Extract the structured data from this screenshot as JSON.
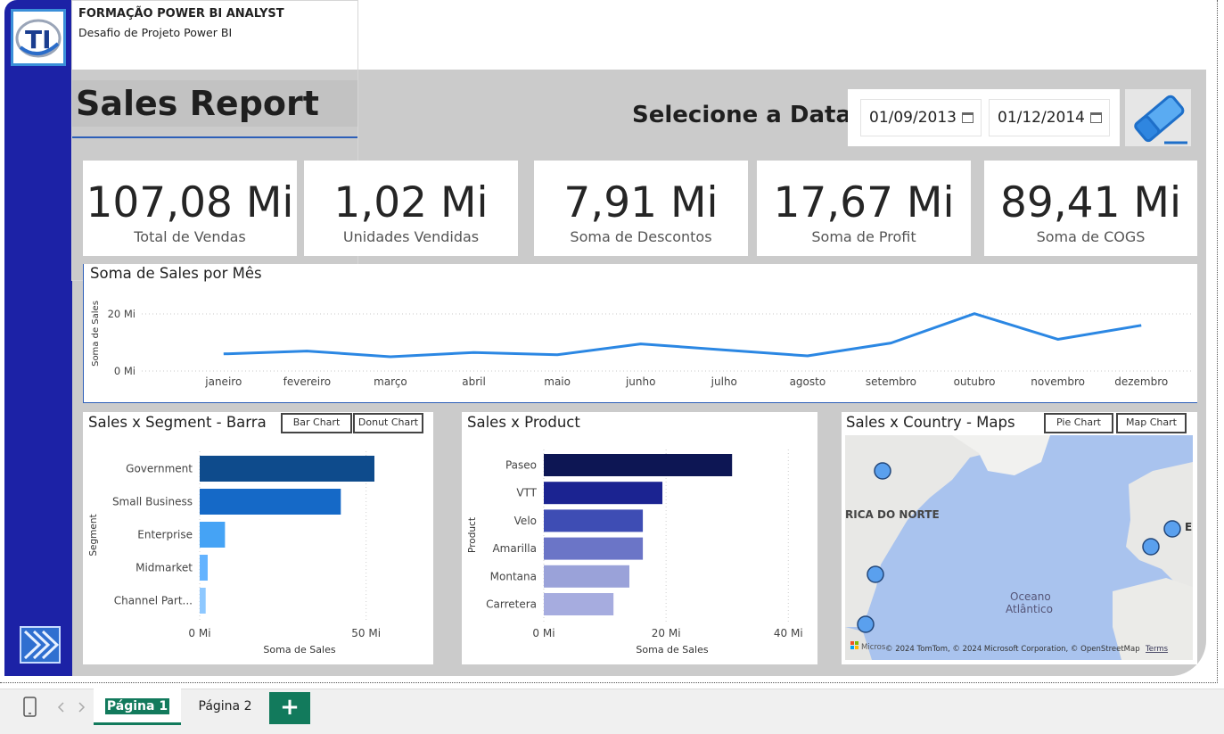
{
  "header": {
    "title": "FORMAÇÃO POWER BI ANALYST",
    "subtitle": "Desafio de Projeto Power BI",
    "logo_text": "TI"
  },
  "report": {
    "title": "Sales Report",
    "date_label": "Selecione a Data",
    "date_start": "01/09/2013",
    "date_end": "01/12/2014"
  },
  "kpis": [
    {
      "value": "107,08 Mi",
      "label": "Total de Vendas"
    },
    {
      "value": "1,02 Mi",
      "label": "Unidades Vendidas"
    },
    {
      "value": "7,91 Mi",
      "label": "Soma de Descontos"
    },
    {
      "value": "17,67 Mi",
      "label": "Soma de Profit"
    },
    {
      "value": "89,41 Mi",
      "label": "Soma de COGS"
    }
  ],
  "toggles": {
    "segment": [
      "Bar Chart",
      "Donut Chart"
    ],
    "country": [
      "Pie Chart",
      "Map Chart"
    ]
  },
  "map": {
    "label_continent": "RICA DO NORTE",
    "label_ocean_1": "Oceano",
    "label_ocean_2": "Atlântico",
    "label_edge": "E",
    "attribution": "© 2024 TomTom, © 2024 Microsoft Corporation, © OpenStreetMap",
    "terms": "Terms",
    "brand": "Micros"
  },
  "pages": {
    "tab1": "Página 1",
    "tab2": "Página 2",
    "add": "+"
  },
  "colors": {
    "sidebar": "#1c22a6",
    "panel": "#cbcbcb",
    "line": "#2b87e3",
    "accent_tab": "#127a5c"
  },
  "chart_data": [
    {
      "id": "monthly",
      "type": "line",
      "title": "Soma de Sales por Mês",
      "ylabel": "Soma de Sales",
      "xlabel": "",
      "categories": [
        "janeiro",
        "fevereiro",
        "março",
        "abril",
        "maio",
        "junho",
        "julho",
        "agosto",
        "setembro",
        "outubro",
        "novembro",
        "dezembro"
      ],
      "values": [
        6.0,
        7.0,
        5.0,
        6.5,
        5.7,
        9.5,
        7.4,
        5.3,
        9.8,
        20.1,
        11.1,
        16.0
      ],
      "ylim": [
        0,
        25
      ],
      "yticks": [
        {
          "v": 0,
          "label": "0 Mi"
        },
        {
          "v": 20,
          "label": "20 Mi"
        }
      ],
      "grid": true
    },
    {
      "id": "segment",
      "type": "bar",
      "title": "Sales x Segment - Barra",
      "ylabel": "Segment",
      "xlabel": "Soma de Sales",
      "categories": [
        "Government",
        "Small Business",
        "Enterprise",
        "Midmarket",
        "Channel Part..."
      ],
      "values": [
        52.5,
        42.4,
        7.6,
        2.4,
        1.8
      ],
      "colors": [
        "#0e4b8c",
        "#1569c7",
        "#45a3f5",
        "#63b3ff",
        "#8ec8ff"
      ],
      "xlim": [
        0,
        60
      ],
      "xticks": [
        {
          "v": 0,
          "label": "0 Mi"
        },
        {
          "v": 50,
          "label": "50 Mi"
        }
      ]
    },
    {
      "id": "product",
      "type": "bar",
      "title": "Sales x Product",
      "ylabel": "Product",
      "xlabel": "Soma de Sales",
      "categories": [
        "Paseo",
        "VTT",
        "Velo",
        "Amarilla",
        "Montana",
        "Carretera"
      ],
      "values": [
        30.8,
        19.4,
        16.2,
        16.2,
        14.0,
        11.4
      ],
      "colors": [
        "#0d1654",
        "#1b2391",
        "#3e4db4",
        "#6b75c7",
        "#9aa2d9",
        "#a6acdf"
      ],
      "xlim": [
        0,
        42
      ],
      "xticks": [
        {
          "v": 0,
          "label": "0 Mi"
        },
        {
          "v": 20,
          "label": "20 Mi"
        },
        {
          "v": 40,
          "label": "40 Mi"
        }
      ]
    },
    {
      "id": "country",
      "type": "map",
      "title": "Sales x Country - Maps",
      "points": 6
    }
  ]
}
